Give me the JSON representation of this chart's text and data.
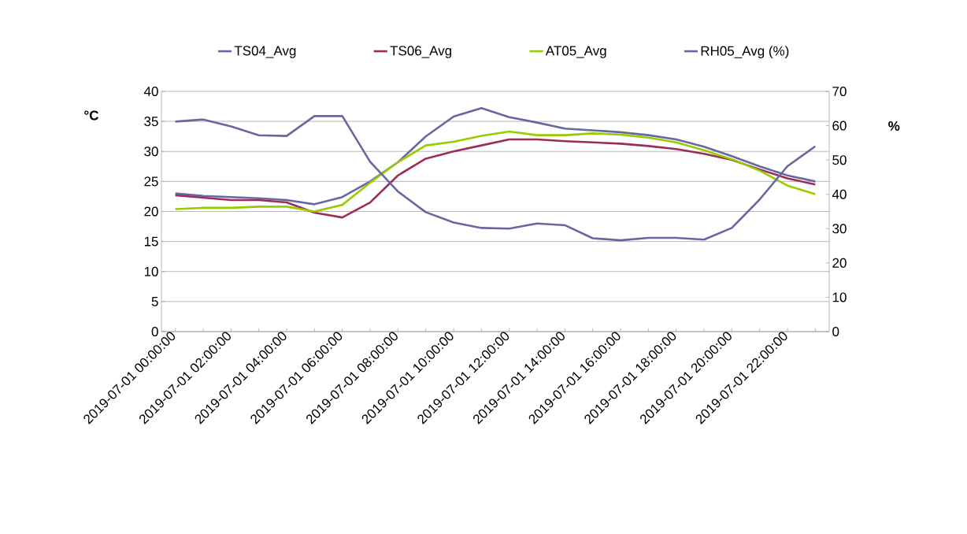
{
  "chart_data": {
    "type": "line",
    "categories": [
      "2019-07-01 00:00:00",
      null,
      "2019-07-01 02:00:00",
      null,
      "2019-07-01 04:00:00",
      null,
      "2019-07-01 06:00:00",
      null,
      "2019-07-01 08:00:00",
      null,
      "2019-07-01 10:00:00",
      null,
      "2019-07-01 12:00:00",
      null,
      "2019-07-01 14:00:00",
      null,
      "2019-07-01 16:00:00",
      null,
      "2019-07-01 18:00:00",
      null,
      "2019-07-01 20:00:00",
      null,
      "2019-07-01 22:00:00",
      null
    ],
    "ylabel": "°C",
    "y2label": "%",
    "ylim": [
      0,
      40
    ],
    "yticks": [
      0,
      5,
      10,
      15,
      20,
      25,
      30,
      35,
      40
    ],
    "y2lim": [
      0,
      70
    ],
    "y2ticks": [
      0,
      10,
      20,
      30,
      40,
      50,
      60,
      70
    ],
    "grid": "y",
    "legend": "top",
    "marker": "none",
    "line_style": "solid",
    "series": [
      {
        "name": "TS04_Avg",
        "color": "#6868a0",
        "values": [
          23,
          22.6,
          22.4,
          22.2,
          21.9,
          21.2,
          22.4,
          25,
          28.2,
          32.5,
          35.8,
          37.2,
          35.7,
          34.8,
          33.8,
          33.5,
          33.2,
          32.7,
          32,
          30.8,
          29.2,
          27.5,
          26,
          25
        ]
      },
      {
        "name": "TS06_Avg",
        "color": "#9b2d5e",
        "values": [
          22.7,
          22.3,
          21.9,
          21.9,
          21.5,
          19.8,
          19.0,
          21.5,
          26,
          28.8,
          30,
          31,
          32,
          32,
          31.7,
          31.5,
          31.3,
          30.9,
          30.4,
          29.6,
          28.6,
          27,
          25.5,
          24.5
        ]
      },
      {
        "name": "AT05_Avg",
        "color": "#99cc00",
        "values": [
          20.4,
          20.6,
          20.6,
          20.8,
          20.8,
          20,
          21.1,
          24.8,
          28.2,
          31,
          31.6,
          32.6,
          33.3,
          32.7,
          32.7,
          33,
          32.8,
          32.3,
          31.5,
          30.2,
          28.7,
          26.8,
          24.3,
          22.9
        ]
      },
      {
        "name": "RH05_Avg (%)",
        "color": "#6868a0",
        "axis": "y2",
        "values": [
          61.2,
          61.8,
          59.8,
          57.2,
          57,
          62.8,
          62.8,
          49.5,
          40.8,
          34.8,
          31.8,
          30.2,
          30,
          31.5,
          31,
          27.2,
          26.6,
          27.3,
          27.3,
          26.8,
          30.2,
          38.5,
          48.2,
          54
        ]
      }
    ]
  }
}
